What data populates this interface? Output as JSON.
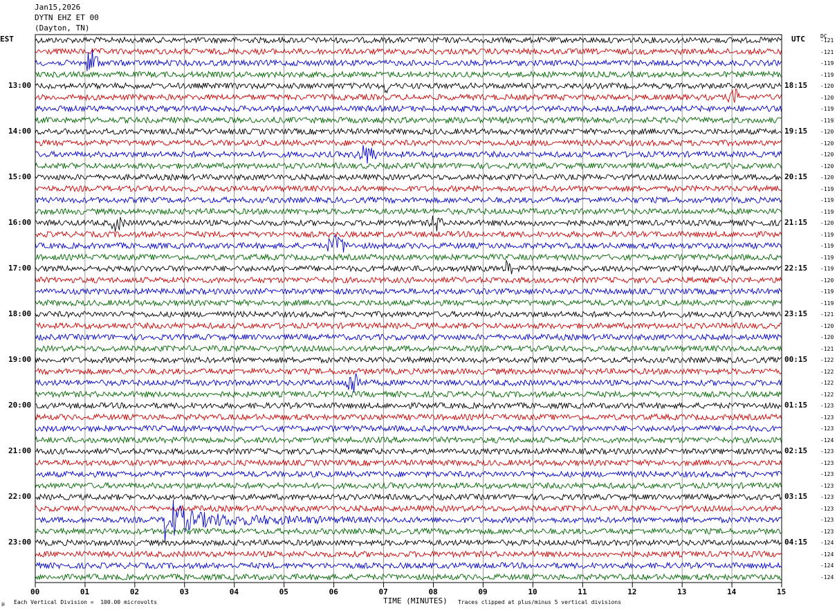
{
  "header": {
    "date": "Jan15,2026",
    "station": "DYTN EHZ ET 00",
    "location": "(Dayton, TN)"
  },
  "left_tz": "EST",
  "right_tz": "UTC",
  "dc_label": "DC",
  "footer": {
    "scale_note": "Each Vertical Division =  100.00 microvolts",
    "xlabel": "TIME (MINUTES)",
    "clip_note": "Traces clipped at plus/minus 5 vertical divisions",
    "corner_mark": "µ"
  },
  "chart_data": {
    "type": "line",
    "plot_kind": "helicorder",
    "xlabel": "TIME (MINUTES)",
    "x_range": [
      0,
      15
    ],
    "x_ticks": [
      "00",
      "01",
      "02",
      "03",
      "04",
      "05",
      "06",
      "07",
      "08",
      "09",
      "10",
      "11",
      "12",
      "13",
      "14",
      "15"
    ],
    "trace_minutes": 15,
    "trace_count": 48,
    "trace_colors": [
      "#000000",
      "#cc0000",
      "#0000cc",
      "#006600"
    ],
    "left_hour_labels": [
      "13:00",
      "14:00",
      "15:00",
      "16:00",
      "17:00",
      "18:00",
      "19:00",
      "20:00",
      "21:00",
      "22:00",
      "23:00"
    ],
    "right_hour_labels": [
      "18:15",
      "19:15",
      "20:15",
      "21:15",
      "22:15",
      "23:15",
      "00:15",
      "01:15",
      "02:15",
      "03:15",
      "04:15"
    ],
    "hour_label_first_trace": 4,
    "dc_offsets": [
      "-121",
      "-121",
      "-119",
      "-119",
      "-120",
      "-120",
      "-119",
      "-119",
      "-120",
      "-120",
      "-120",
      "-120",
      "-120",
      "-119",
      "-119",
      "-119",
      "-120",
      "-119",
      "-119",
      "-119",
      "-119",
      "-120",
      "-119",
      "-119",
      "-121",
      "-120",
      "-120",
      "-121",
      "-122",
      "-122",
      "-122",
      "-122",
      "-123",
      "-123",
      "-123",
      "-124",
      "-123",
      "-123",
      "-123",
      "-123",
      "-123",
      "-123",
      "-123",
      "-123",
      "-124",
      "-124",
      "-124",
      "-124"
    ],
    "events": [
      {
        "trace": 2,
        "minute": 1.0,
        "duration": 0.3,
        "amplitude": 2.5,
        "kind": "burst"
      },
      {
        "trace": 5,
        "minute": 13.9,
        "duration": 0.3,
        "amplitude": 1.2,
        "kind": "burst"
      },
      {
        "trace": 4,
        "minute": 7.0,
        "duration": 0.1,
        "amplitude": 1.5,
        "kind": "burst"
      },
      {
        "trace": 10,
        "minute": 6.4,
        "duration": 0.5,
        "amplitude": 1.5,
        "kind": "burst"
      },
      {
        "trace": 16,
        "minute": 1.5,
        "duration": 0.3,
        "amplitude": 1.3,
        "kind": "burst"
      },
      {
        "trace": 16,
        "minute": 7.9,
        "duration": 0.3,
        "amplitude": 1.3,
        "kind": "burst"
      },
      {
        "trace": 18,
        "minute": 5.8,
        "duration": 0.5,
        "amplitude": 1.5,
        "kind": "burst"
      },
      {
        "trace": 20,
        "minute": 9.4,
        "duration": 0.2,
        "amplitude": 1.2,
        "kind": "burst"
      },
      {
        "trace": 30,
        "minute": 6.2,
        "duration": 0.4,
        "amplitude": 2.0,
        "kind": "burst"
      },
      {
        "trace": 42,
        "minute": 2.6,
        "duration": 12.4,
        "amplitude": 5.0,
        "kind": "earthquake"
      }
    ]
  }
}
